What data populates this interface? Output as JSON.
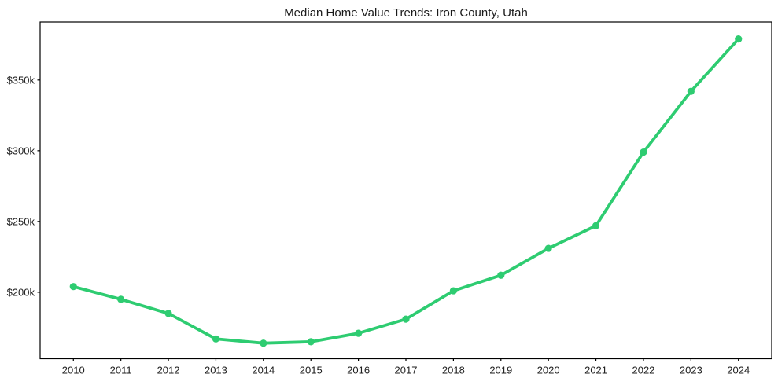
{
  "chart_data": {
    "type": "line",
    "title": "Median Home Value Trends: Iron County, Utah",
    "unit": "USD thousands",
    "x": [
      2010,
      2011,
      2012,
      2013,
      2014,
      2015,
      2016,
      2017,
      2018,
      2019,
      2020,
      2021,
      2022,
      2023,
      2024
    ],
    "values": [
      204,
      195,
      185,
      167,
      164,
      165,
      171,
      181,
      201,
      212,
      231,
      247,
      299,
      342,
      379
    ],
    "xtick_labels": [
      "2010",
      "2011",
      "2012",
      "2013",
      "2014",
      "2015",
      "2016",
      "2017",
      "2018",
      "2019",
      "2020",
      "2021",
      "2022",
      "2023",
      "2024"
    ],
    "yticks": [
      200,
      250,
      300,
      350
    ],
    "ytick_labels": [
      "$200k",
      "$250k",
      "$300k",
      "$350k"
    ],
    "xlim": [
      2009.3,
      2024.7
    ],
    "ylim": [
      153,
      391
    ],
    "grid": false,
    "legend": "none",
    "line_color": "#2ecc71",
    "marker": "circle",
    "axis_color": "#000000",
    "background_color": "#ffffff"
  }
}
